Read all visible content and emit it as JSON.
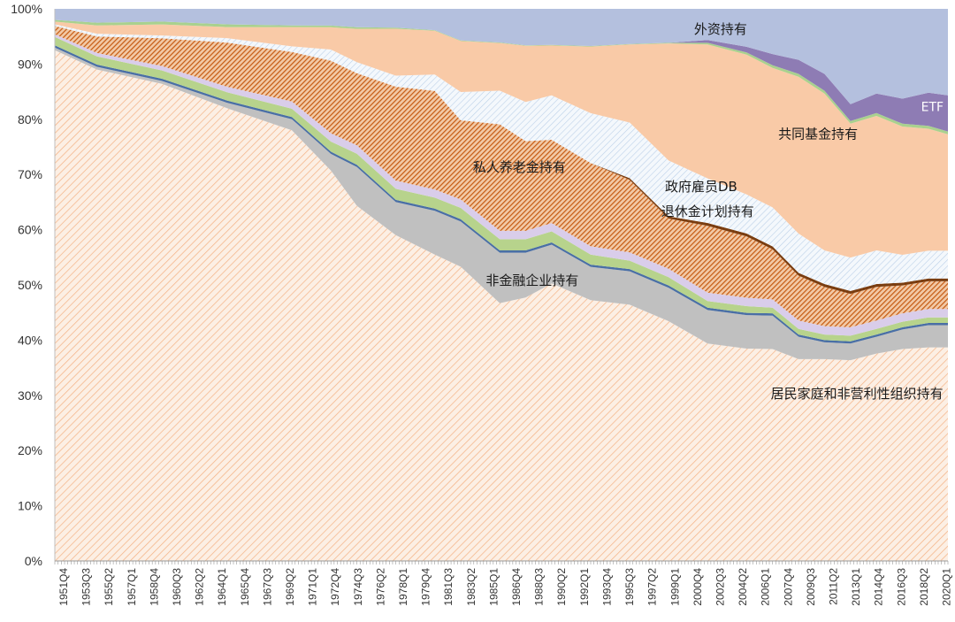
{
  "chart_data": {
    "type": "area",
    "stacked": true,
    "normalized_percent": true,
    "ylim": [
      0,
      100
    ],
    "yticks": [
      "0%",
      "10%",
      "20%",
      "30%",
      "40%",
      "50%",
      "60%",
      "70%",
      "80%",
      "90%",
      "100%"
    ],
    "tick_labels": [
      "1951Q4",
      "1953Q3",
      "1955Q2",
      "1957Q1",
      "1958Q4",
      "1960Q3",
      "1962Q2",
      "1964Q1",
      "1965Q4",
      "1967Q3",
      "1969Q2",
      "1971Q1",
      "1972Q4",
      "1974Q3",
      "1976Q2",
      "1978Q1",
      "1979Q4",
      "1981Q3",
      "1983Q2",
      "1985Q1",
      "1986Q4",
      "1988Q3",
      "1990Q2",
      "1992Q1",
      "1993Q4",
      "1995Q3",
      "1997Q2",
      "1999Q1",
      "2000Q4",
      "2002Q3",
      "2004Q2",
      "2006Q1",
      "2007Q4",
      "2009Q3",
      "2011Q2",
      "2013Q1",
      "2014Q4",
      "2016Q3",
      "2018Q2",
      "2020Q1"
    ],
    "x": [
      1951.75,
      1955,
      1960,
      1965,
      1970,
      1973,
      1975,
      1978,
      1981,
      1983,
      1986,
      1988,
      1990,
      1993,
      1996,
      1999,
      2002,
      2005,
      2007,
      2009,
      2011,
      2013,
      2015,
      2017,
      2019,
      2020.5
    ],
    "series": [
      {
        "name": "居民家庭和非营利性组织持有",
        "color": "#f4b183",
        "pattern": "light-diagonal",
        "values": [
          92.5,
          89,
          86,
          82,
          78,
          70,
          64,
          59,
          56,
          52,
          46,
          47,
          50,
          47,
          46,
          43,
          39,
          38,
          38,
          36,
          36,
          36,
          37,
          38,
          38.5,
          38.5
        ]
      },
      {
        "name": "非金融企业持有",
        "color": "#c0c0c0",
        "values": [
          0.5,
          0.5,
          0.5,
          1,
          2,
          3,
          7,
          6,
          8,
          8,
          9,
          8,
          7,
          6,
          6,
          6,
          6,
          6,
          6,
          4,
          3,
          3,
          3,
          3.5,
          4,
          4
        ]
      },
      {
        "name": "",
        "color": "#4a6fa5",
        "values": [
          0.4,
          0.4,
          0.4,
          0.4,
          0.4,
          0.4,
          0.4,
          0.4,
          0.4,
          0.4,
          0.4,
          0.4,
          0.4,
          0.4,
          0.4,
          0.4,
          0.4,
          0.4,
          0.4,
          0.4,
          0.4,
          0.4,
          0.4,
          0.4,
          0.4,
          0.4
        ]
      },
      {
        "name": "",
        "color": "#b7d38c",
        "values": [
          1.5,
          1.5,
          1.5,
          1.5,
          1.5,
          1.8,
          2,
          2,
          2,
          2,
          2,
          2,
          2,
          1.8,
          1.5,
          1.5,
          1.2,
          1.2,
          1,
          1,
          1,
          1,
          1,
          1,
          1,
          1
        ]
      },
      {
        "name": "",
        "color": "#d9cdea",
        "values": [
          0.5,
          0.6,
          0.8,
          1,
          1.3,
          1.5,
          1.5,
          1.5,
          1.5,
          1.5,
          1.5,
          1.5,
          1.5,
          1.5,
          1.5,
          1.5,
          1.5,
          1.5,
          1.5,
          1.5,
          1.5,
          1.5,
          1.5,
          1.5,
          1.5,
          1.5
        ]
      },
      {
        "name": "私人养老金持有",
        "color": "#c55a11",
        "pattern": "dense-diagonal",
        "values": [
          1.5,
          3,
          5,
          8,
          9,
          13,
          13,
          17,
          18,
          14,
          19,
          16,
          15,
          15,
          13,
          9,
          12,
          11,
          9,
          8,
          7,
          6,
          6,
          5,
          5,
          5
        ]
      },
      {
        "name": "",
        "color": "#7a3d10",
        "values": [
          0,
          0,
          0,
          0,
          0,
          0,
          0,
          0,
          0,
          0,
          0,
          0,
          0,
          0,
          0.3,
          0.4,
          0.5,
          0.5,
          0.5,
          0.5,
          0.5,
          0.5,
          0.5,
          0.5,
          0.5,
          0.5
        ]
      },
      {
        "name": "政府雇员DB 退休金计划持有",
        "color": "#dbe5f1",
        "pattern": "light-diagonal",
        "values": [
          0.3,
          0.5,
          0.5,
          0.8,
          1,
          2,
          2,
          2,
          3,
          5,
          6,
          7,
          8,
          9,
          10,
          10,
          8,
          7,
          7,
          7,
          6,
          6,
          6,
          5,
          5,
          5
        ]
      },
      {
        "name": "共同基金持有",
        "color": "#f9caa7",
        "values": [
          0.5,
          1.5,
          2,
          2,
          3.5,
          4,
          6,
          8.5,
          8,
          9,
          8.5,
          10,
          9,
          12,
          14,
          21,
          24,
          25,
          25,
          28,
          28,
          24,
          24,
          23,
          22,
          21
        ]
      },
      {
        "name": "",
        "color": "#a9d18e",
        "values": [
          0.3,
          0.5,
          0.5,
          0.5,
          0.3,
          0.3,
          0.3,
          0.2,
          0.1,
          0.1,
          0.1,
          0.1,
          0.1,
          0.1,
          0.1,
          0.1,
          0.3,
          0.4,
          0.5,
          0.5,
          0.5,
          0.5,
          0.5,
          0.5,
          0.5,
          0.5
        ]
      },
      {
        "name": "ETF",
        "color": "#8e7cb4",
        "values": [
          0,
          0,
          0,
          0,
          0,
          0,
          0,
          0,
          0,
          0,
          0,
          0,
          0,
          0,
          0,
          0,
          0.5,
          1,
          2,
          2.5,
          3,
          3,
          3.5,
          4.5,
          6,
          6.5
        ]
      },
      {
        "name": "外资持有",
        "color": "#b4c0de",
        "values": [
          2,
          2.5,
          2.3,
          2.8,
          3,
          3,
          3.3,
          3.4,
          3.9,
          5.6,
          6,
          6.5,
          6.5,
          6.7,
          6.3,
          6.1,
          5.6,
          6.8,
          8.1,
          9.1,
          11.6,
          17.1,
          15.1,
          16.1,
          15.1,
          15.6
        ]
      }
    ],
    "labels": [
      {
        "text": "外资持有",
        "x": 2003,
        "y": 95.5
      },
      {
        "text": "ETF",
        "x": 2019.3,
        "y": 81.5
      },
      {
        "text": "共同基金持有",
        "x": 2010.5,
        "y": 76.5
      },
      {
        "text": "私人养老金持有",
        "x": 1987.5,
        "y": 70.5
      },
      {
        "text": "政府雇员DB",
        "x": 2001.5,
        "y": 67
      },
      {
        "text": "退休金计划持有",
        "x": 2002,
        "y": 62.5
      },
      {
        "text": "非金融企业持有",
        "x": 1988.5,
        "y": 50
      },
      {
        "text": "居民家庭和非营利性组织持有",
        "x": 2013.5,
        "y": 29.5
      }
    ]
  }
}
